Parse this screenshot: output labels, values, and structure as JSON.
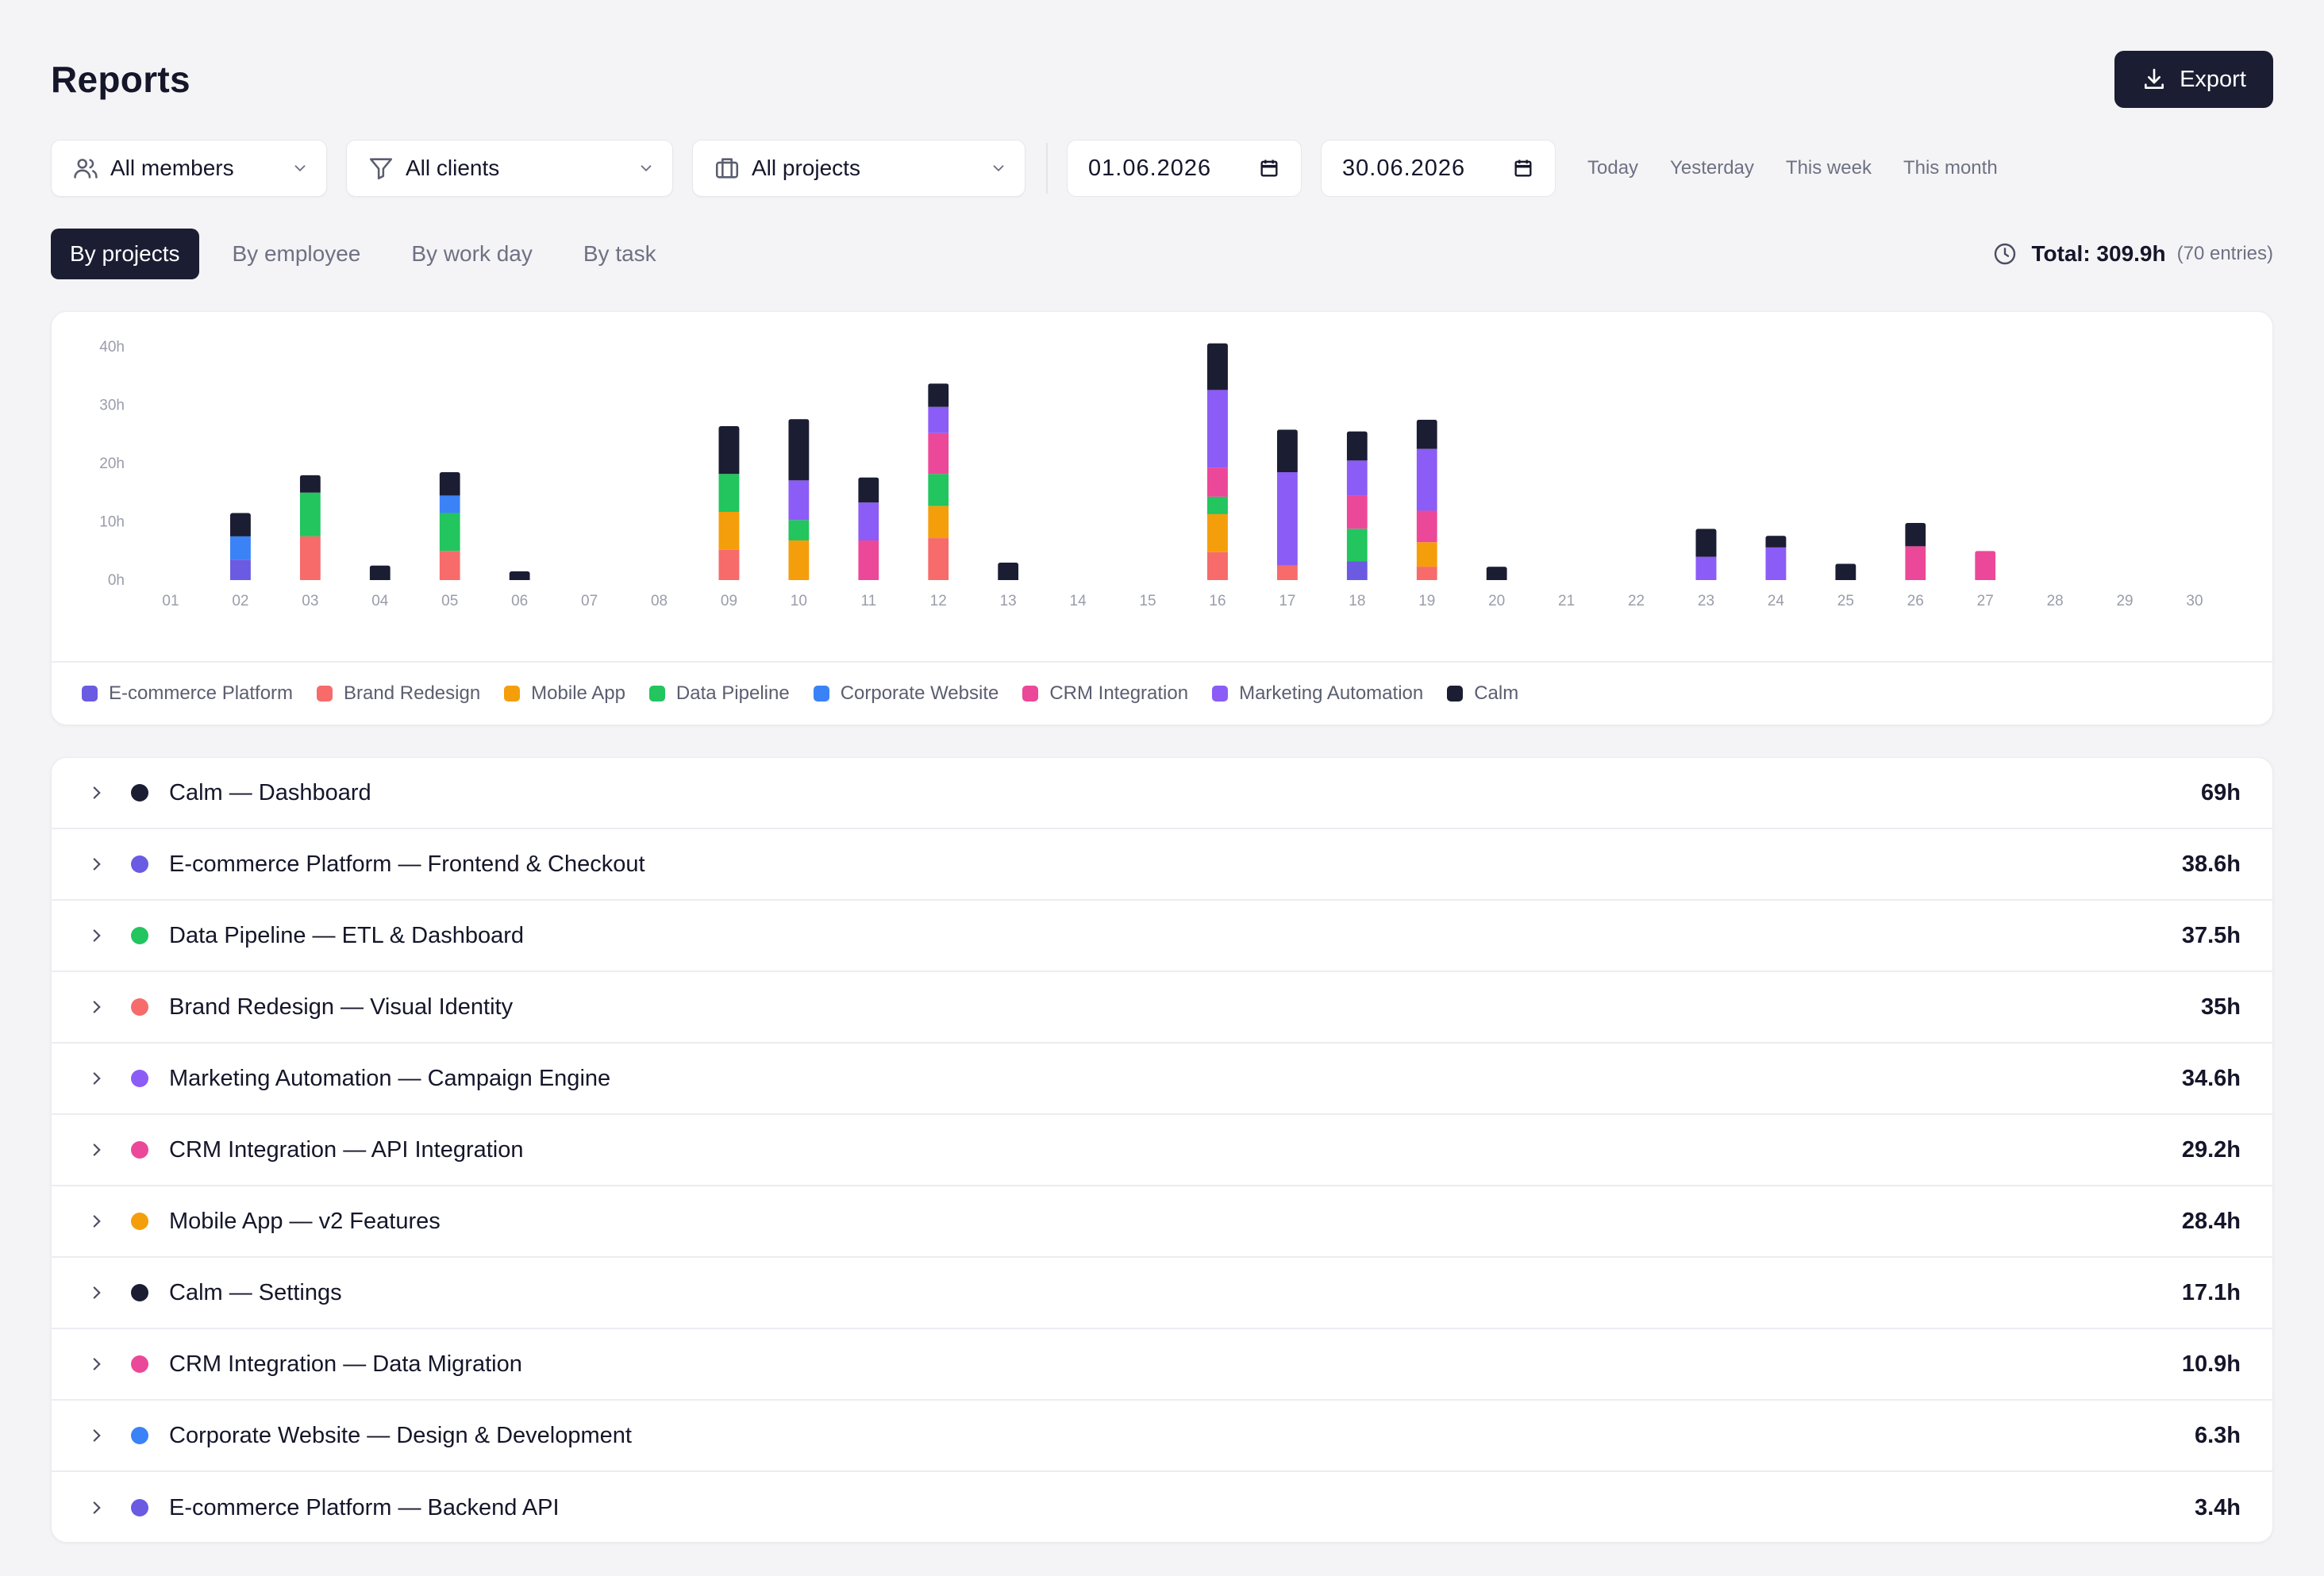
{
  "header": {
    "title": "Reports",
    "export_label": "Export"
  },
  "filters": {
    "members": "All members",
    "clients": "All clients",
    "projects": "All projects",
    "date_from": "01.06.2026",
    "date_to": "30.06.2026",
    "quick": [
      "Today",
      "Yesterday",
      "This week",
      "This month"
    ]
  },
  "tabs": [
    "By projects",
    "By employee",
    "By work day",
    "By task"
  ],
  "total": {
    "label": "Total: 309.9h",
    "entries": "(70 entries)"
  },
  "colors": {
    "E-commerce Platform": "#6a5be2",
    "Brand Redesign": "#f76b6b",
    "Mobile App": "#f59e0b",
    "Data Pipeline": "#22c55e",
    "Corporate Website": "#3b82f6",
    "CRM Integration": "#ec4899",
    "Marketing Automation": "#8b5cf6",
    "Calm": "#1b1d33"
  },
  "chart_data": {
    "type": "bar",
    "stacked": true,
    "y_ticks": [
      "40h",
      "30h",
      "20h",
      "10h",
      "0h"
    ],
    "ylim": [
      0,
      40
    ],
    "grid": false,
    "legend_position": "bottom",
    "categories": [
      "01",
      "02",
      "03",
      "04",
      "05",
      "06",
      "07",
      "08",
      "09",
      "10",
      "11",
      "12",
      "13",
      "14",
      "15",
      "16",
      "17",
      "18",
      "19",
      "20",
      "21",
      "22",
      "23",
      "24",
      "25",
      "26",
      "27",
      "28",
      "29",
      "30"
    ],
    "series": [
      {
        "name": "E-commerce Platform",
        "values": [
          0,
          3.5,
          0,
          0,
          0,
          0,
          0,
          0,
          0,
          0,
          0,
          0,
          0,
          0,
          0,
          0,
          0,
          3.2,
          0,
          0,
          0,
          0,
          0,
          0,
          0,
          0,
          0,
          0,
          0,
          0
        ]
      },
      {
        "name": "Brand Redesign",
        "values": [
          0,
          0,
          7.5,
          0,
          5,
          0,
          0,
          0,
          5.2,
          0,
          0,
          7.2,
          0,
          0,
          0,
          4.8,
          2.5,
          0,
          2.3,
          0,
          0,
          0,
          0,
          0,
          0,
          0,
          0,
          0,
          0,
          0
        ]
      },
      {
        "name": "Mobile App",
        "values": [
          0,
          0,
          0,
          0,
          0,
          0,
          0,
          0,
          6.5,
          6.8,
          0,
          5.5,
          0,
          0,
          0,
          6.5,
          0,
          0,
          4.2,
          0,
          0,
          0,
          0,
          0,
          0,
          0,
          0,
          0,
          0,
          0
        ]
      },
      {
        "name": "Data Pipeline",
        "values": [
          0,
          0,
          7.5,
          0,
          6.5,
          0,
          0,
          0,
          6.5,
          3.5,
          0,
          5.5,
          0,
          0,
          0,
          3,
          0,
          5.6,
          0,
          0,
          0,
          0,
          0,
          0,
          0,
          0,
          0,
          0,
          0,
          0
        ]
      },
      {
        "name": "Corporate Website",
        "values": [
          0,
          4,
          0,
          0,
          3,
          0,
          0,
          0,
          0,
          0,
          0,
          0,
          0,
          0,
          0,
          0,
          0,
          0,
          0,
          0,
          0,
          0,
          0,
          0,
          0,
          0,
          0,
          0,
          0,
          0
        ]
      },
      {
        "name": "CRM Integration",
        "values": [
          0,
          0,
          0,
          0,
          0,
          0,
          0,
          0,
          0,
          0,
          6.8,
          7,
          0,
          0,
          0,
          5,
          0,
          5.7,
          5.4,
          0,
          0,
          0,
          0,
          0,
          0,
          5.8,
          5,
          0,
          0,
          0
        ]
      },
      {
        "name": "Marketing Automation",
        "values": [
          0,
          0,
          0,
          0,
          0,
          0,
          0,
          0,
          0,
          6.8,
          6.5,
          4.5,
          0,
          0,
          0,
          13.3,
          16,
          6,
          10.6,
          0,
          0,
          0,
          4,
          5.6,
          0,
          0,
          0,
          0,
          0,
          0
        ]
      },
      {
        "name": "Calm",
        "values": [
          0,
          4,
          3,
          2.5,
          4,
          1.5,
          0,
          0,
          8.2,
          10.5,
          4.3,
          4,
          3,
          0,
          0,
          8,
          7.3,
          5,
          5,
          2.3,
          0,
          0,
          4.8,
          2,
          2.8,
          4,
          0,
          0,
          0,
          0
        ]
      }
    ]
  },
  "rows": [
    {
      "name": "Calm — Dashboard",
      "hours": "69h",
      "color": "#1b1d33"
    },
    {
      "name": "E-commerce Platform — Frontend & Checkout",
      "hours": "38.6h",
      "color": "#6a5be2"
    },
    {
      "name": "Data Pipeline — ETL & Dashboard",
      "hours": "37.5h",
      "color": "#22c55e"
    },
    {
      "name": "Brand Redesign — Visual Identity",
      "hours": "35h",
      "color": "#f76b6b"
    },
    {
      "name": "Marketing Automation — Campaign Engine",
      "hours": "34.6h",
      "color": "#8b5cf6"
    },
    {
      "name": "CRM Integration — API Integration",
      "hours": "29.2h",
      "color": "#ec4899"
    },
    {
      "name": "Mobile App — v2 Features",
      "hours": "28.4h",
      "color": "#f59e0b"
    },
    {
      "name": "Calm — Settings",
      "hours": "17.1h",
      "color": "#1b1d33"
    },
    {
      "name": "CRM Integration — Data Migration",
      "hours": "10.9h",
      "color": "#ec4899"
    },
    {
      "name": "Corporate Website — Design & Development",
      "hours": "6.3h",
      "color": "#3b82f6"
    },
    {
      "name": "E-commerce Platform — Backend API",
      "hours": "3.4h",
      "color": "#6a5be2"
    }
  ]
}
